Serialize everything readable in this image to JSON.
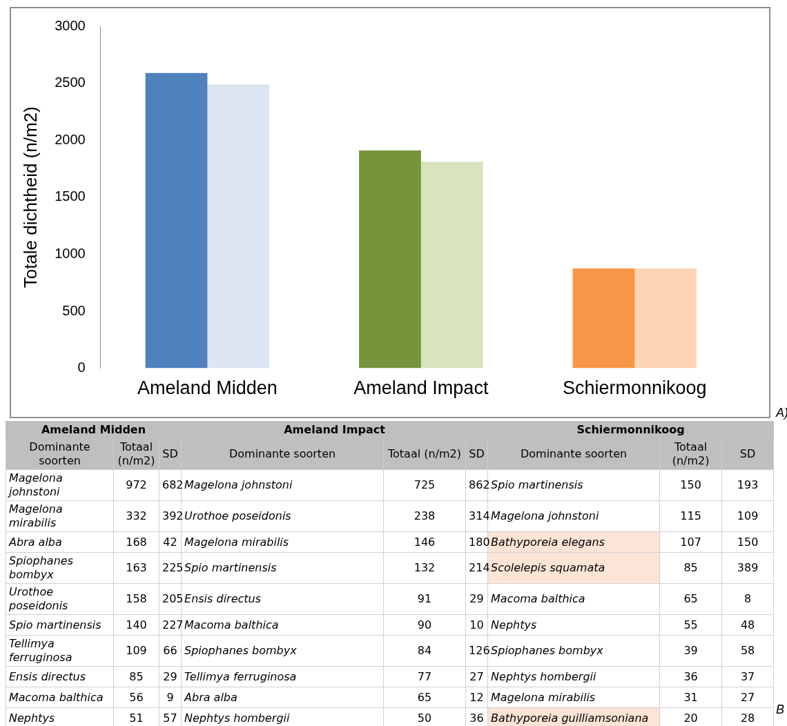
{
  "chart_data": [
    {
      "type": "bar",
      "ylabel": "Totale dichtheid (n/m2)",
      "categories": [
        "Ameland Midden",
        "Ameland Impact",
        "Schiermonnikoog"
      ],
      "series": [
        {
          "colors": [
            "#4f81bd",
            "#77933c",
            "#f79646"
          ],
          "values": [
            2590,
            1910,
            875
          ]
        },
        {
          "colors": [
            "#dce6f2",
            "#d7e4bd",
            "#fcd5b5"
          ],
          "values": [
            2490,
            1810,
            875
          ]
        }
      ],
      "ylim": [
        0,
        3000
      ],
      "yticks": [
        0,
        500,
        1000,
        1500,
        2000,
        2500,
        3000
      ],
      "grid": false,
      "legend": false,
      "annotations": [
        "A)"
      ]
    },
    {
      "type": "other",
      "subtitle": "B",
      "annotations": [
        "Ameland Midden",
        "Ameland Impact",
        "Schiermonnikoog",
        "Dominante soorten",
        "Totaal (n/m2)",
        "SD",
        "Dominante soorten",
        "Totaal (n/m2)",
        "SD",
        "Dominante soorten",
        "Totaal (n/m2)",
        "SD",
        "Magelona johnstoni",
        "972",
        "682",
        "Magelona johnstoni",
        "725",
        "862",
        "Spio martinensis",
        "150",
        "193",
        "Magelona mirabilis",
        "332",
        "392",
        "Urothoe poseidonis",
        "238",
        "314",
        "Magelona johnstoni",
        "115",
        "109",
        "Abra alba",
        "168",
        "42",
        "Magelona mirabilis",
        "146",
        "180",
        "Bathyporeia elegans",
        "107",
        "150",
        "Spiophanes bombyx",
        "163",
        "225",
        "Spio martinensis",
        "132",
        "214",
        "Scolelepis squamata",
        "85",
        "389",
        "Urothoe poseidonis",
        "158",
        "205",
        "Ensis directus",
        "91",
        "29",
        "Macoma balthica",
        "65",
        "8",
        "Spio martinensis",
        "140",
        "227",
        "Macoma balthica",
        "90",
        "10",
        "Nephtys",
        "55",
        "48",
        "Tellimya ferruginosa",
        "109",
        "66",
        "Spiophanes bombyx",
        "84",
        "126",
        "Spiophanes bombyx",
        "39",
        "58",
        "Ensis directus",
        "85",
        "29",
        "Tellimya ferruginosa",
        "77",
        "27",
        "Nephtys hombergii",
        "36",
        "37",
        "Macoma balthica",
        "56",
        "9",
        "Abra alba",
        "65",
        "12",
        "Magelona mirabilis",
        "31",
        "27",
        "Nephtys",
        "51",
        "57",
        "Nephtys hombergii",
        "50",
        "36",
        "Bathyporeia guilliamsoniana",
        "20",
        "28"
      ],
      "colors": [
        "#bfbfbf",
        "#bfbfbf",
        "#bfbfbf",
        "#bfbfbf",
        "#bfbfbf",
        "#bfbfbf",
        "#bfbfbf",
        "#bfbfbf",
        "#bfbfbf",
        "#bfbfbf",
        "#bfbfbf",
        "#bfbfbf",
        null,
        null,
        null,
        null,
        null,
        null,
        null,
        null,
        null,
        null,
        null,
        null,
        null,
        null,
        null,
        null,
        null,
        null,
        null,
        null,
        null,
        null,
        null,
        null,
        "#fce4d6",
        null,
        null,
        null,
        null,
        null,
        null,
        null,
        null,
        "#fce4d6",
        null,
        null,
        null,
        null,
        null,
        null,
        null,
        null,
        null,
        null,
        null,
        null,
        null,
        null,
        null,
        null,
        null,
        null,
        null,
        null,
        null,
        null,
        null,
        null,
        null,
        null,
        null,
        null,
        null,
        null,
        null,
        null,
        null,
        null,
        null,
        null,
        null,
        null,
        null,
        null,
        null,
        null,
        null,
        null,
        null,
        null,
        null,
        null,
        null,
        null,
        null,
        null,
        null,
        "#fce4d6",
        null,
        null
      ]
    }
  ]
}
